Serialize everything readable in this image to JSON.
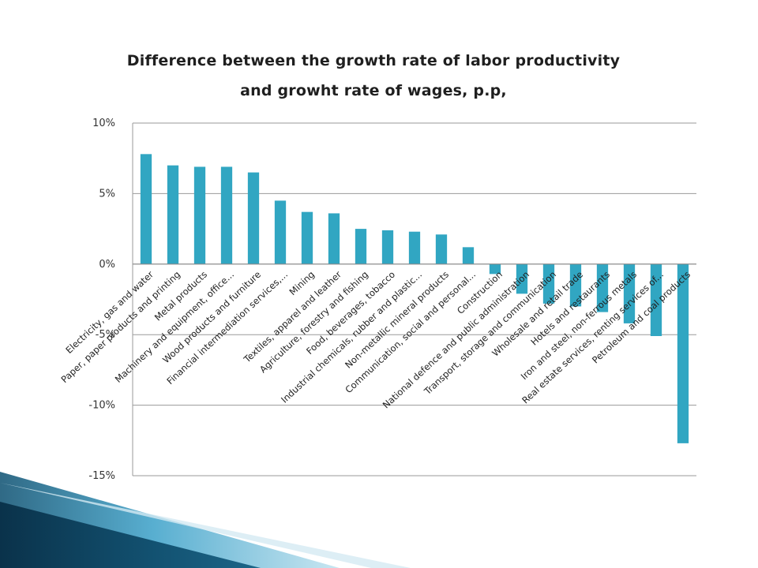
{
  "chart_data": {
    "type": "bar",
    "title_lines": [
      "Difference between the growth rate of labor productivity",
      "and growht rate of  wages, p.p,"
    ],
    "xlabel": "",
    "ylabel": "",
    "ylim": [
      -15,
      10
    ],
    "yticks": [
      {
        "value": 10,
        "label": "10%"
      },
      {
        "value": 5,
        "label": "5%"
      },
      {
        "value": 0,
        "label": "0%"
      },
      {
        "value": -5,
        "label": "-5%"
      },
      {
        "value": -10,
        "label": "-10%"
      },
      {
        "value": -15,
        "label": "-15%"
      }
    ],
    "grid": true,
    "legend": "none",
    "bar_color": "#31a6c2",
    "categories": [
      "Electricity, gas and water",
      "Paper, paper products and printing",
      "Metal products",
      "Machinery and equipment, office...",
      "Wood products and furniture",
      "Financial intermediation services,...",
      "Mining",
      "Textiles, apparel and leather",
      "Agriculture, forestry and fishing",
      "Food, beverages, tobacco",
      "Industrial chemicals, rubber and plastic...",
      "Non-metallic mineral products",
      "Communication, social and personal...",
      "Construction",
      "National defence and public administration",
      "Transport, storage and communication",
      "Wholesale and retail trade",
      "Hotels and restaurants",
      "Iron and steel, non-ferrous metals",
      "Real estate services, renting services of...",
      "Petroleum and coal products"
    ],
    "values": [
      7.8,
      7.0,
      6.9,
      6.9,
      6.5,
      4.5,
      3.7,
      3.6,
      2.5,
      2.4,
      2.3,
      2.1,
      1.2,
      -0.7,
      -2.1,
      -2.8,
      -3.0,
      -3.4,
      -4.2,
      -5.1,
      -12.7
    ]
  },
  "decor": {
    "accent": "#0e5a7e",
    "accent_light": "#5fb7d9"
  }
}
